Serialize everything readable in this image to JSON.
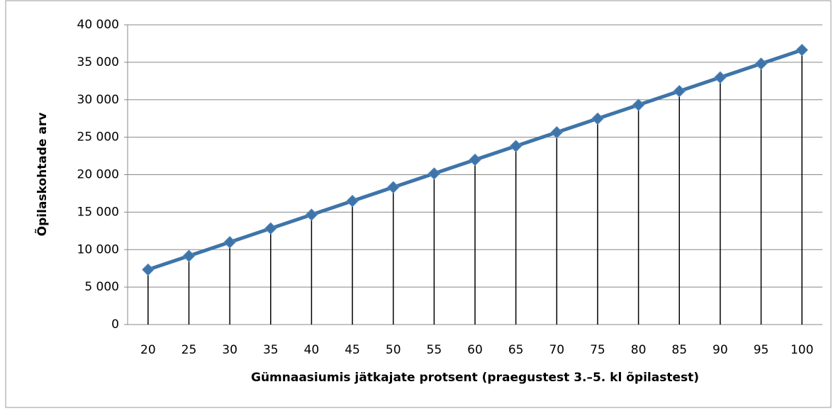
{
  "chart_data": {
    "type": "line",
    "x_label": "Gümnaasiumis jätkajate protsent (praegustest 3.–5. kl õpilastest)",
    "y_label": "Õpilaskohtade arv",
    "categories": [
      "20",
      "25",
      "30",
      "35",
      "40",
      "45",
      "50",
      "55",
      "60",
      "65",
      "70",
      "75",
      "80",
      "85",
      "90",
      "95",
      "100"
    ],
    "series": [
      {
        "name": "Õpilaskohtade arv",
        "color": "#3f74a8",
        "values": [
          7330,
          9160,
          10990,
          12830,
          14660,
          16490,
          18320,
          20150,
          21990,
          23820,
          25650,
          27480,
          29310,
          31150,
          32980,
          34810,
          36640
        ]
      }
    ],
    "ylim": [
      0,
      40000
    ],
    "yticks": [
      0,
      {
        "value": 5000,
        "label": "5 000"
      },
      {
        "value": 10000,
        "label": "10 000"
      },
      {
        "value": 15000,
        "label": "15 000"
      },
      {
        "value": 20000,
        "label": "20 000"
      },
      {
        "value": 25000,
        "label": "25 000"
      },
      {
        "value": 30000,
        "label": "30 000"
      },
      {
        "value": 35000,
        "label": "35 000"
      },
      {
        "value": 40000,
        "label": "40 000"
      }
    ],
    "grid": true,
    "drop_lines": true
  }
}
